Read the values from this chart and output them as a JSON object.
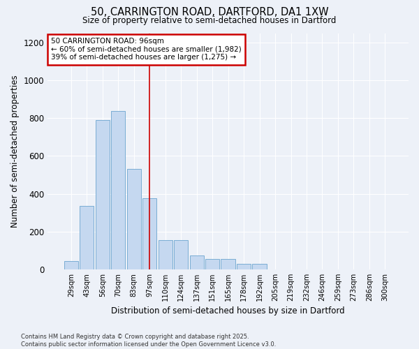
{
  "title_line1": "50, CARRINGTON ROAD, DARTFORD, DA1 1XW",
  "title_line2": "Size of property relative to semi-detached houses in Dartford",
  "xlabel": "Distribution of semi-detached houses by size in Dartford",
  "ylabel": "Number of semi-detached properties",
  "categories": [
    "29sqm",
    "43sqm",
    "56sqm",
    "70sqm",
    "83sqm",
    "97sqm",
    "110sqm",
    "124sqm",
    "137sqm",
    "151sqm",
    "165sqm",
    "178sqm",
    "192sqm",
    "205sqm",
    "219sqm",
    "232sqm",
    "246sqm",
    "259sqm",
    "273sqm",
    "286sqm",
    "300sqm"
  ],
  "values": [
    45,
    335,
    790,
    840,
    530,
    375,
    155,
    155,
    75,
    55,
    55,
    30,
    30,
    0,
    0,
    0,
    0,
    0,
    0,
    0,
    0
  ],
  "bar_color": "#c5d8f0",
  "bar_edge_color": "#7aadd4",
  "highlight_index": 5,
  "highlight_line_color": "#cc0000",
  "annotation_text": "50 CARRINGTON ROAD: 96sqm\n← 60% of semi-detached houses are smaller (1,982)\n39% of semi-detached houses are larger (1,275) →",
  "annotation_box_facecolor": "#ffffff",
  "annotation_box_edgecolor": "#cc0000",
  "ylim": [
    0,
    1250
  ],
  "yticks": [
    0,
    200,
    400,
    600,
    800,
    1000,
    1200
  ],
  "bg_color": "#edf1f8",
  "plot_bg_color": "#edf1f8",
  "grid_color": "#ffffff",
  "footnote": "Contains HM Land Registry data © Crown copyright and database right 2025.\nContains public sector information licensed under the Open Government Licence v3.0.",
  "figsize": [
    6.0,
    5.0
  ],
  "dpi": 100
}
